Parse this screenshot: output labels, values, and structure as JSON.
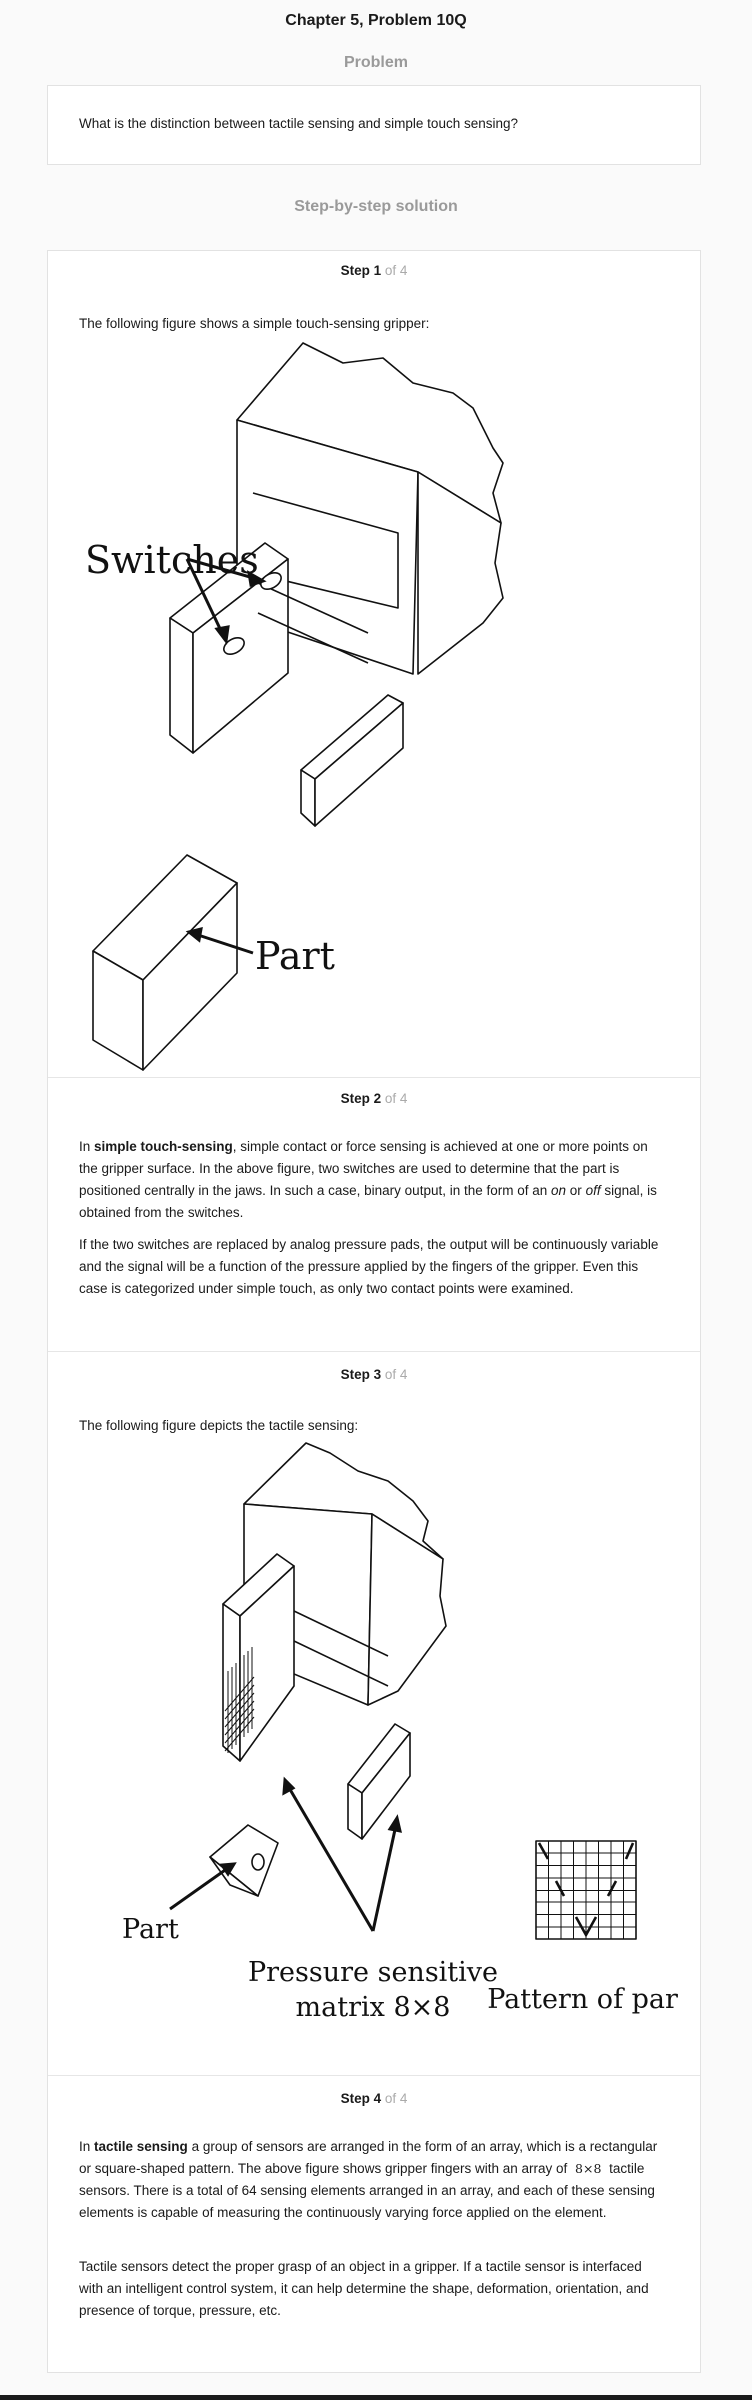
{
  "page": {
    "title": "Chapter 5, Problem 10Q",
    "problem_heading": "Problem",
    "solution_heading": "Step-by-step solution"
  },
  "problem": {
    "text": "What is the distinction between tactile sensing and simple touch sensing?"
  },
  "steps": [
    {
      "label": "Step 1",
      "of": "of 4",
      "intro": "The following figure shows a simple touch-sensing gripper:",
      "figure_labels": {
        "switches": "Switches",
        "part": "Part"
      }
    },
    {
      "label": "Step 2",
      "of": "of 4",
      "p1": {
        "a": "In ",
        "b": "simple touch-sensing",
        "c": ", simple contact or force sensing is achieved at one or more points on the gripper surface. In the above figure, two switches are used to determine that the part is positioned centrally in the jaws. In such a case, binary output, in the form of an ",
        "d": "on",
        "e": " or ",
        "f": "off",
        "g": " signal, is obtained from the switches."
      },
      "p2": "If the two switches are replaced by analog pressure pads, the output will be continuously variable and the signal will be a function of the pressure applied by the fingers of the gripper. Even this case is categorized under simple touch, as only two contact points were examined."
    },
    {
      "label": "Step 3",
      "of": "of 4",
      "intro": "The following figure depicts the tactile sensing:",
      "figure_labels": {
        "part": "Part",
        "matrix_line1": "Pressure sensitive",
        "matrix_line2": "matrix 8×8",
        "pattern": "Pattern of part"
      }
    },
    {
      "label": "Step 4",
      "of": "of 4",
      "p1": {
        "a": "In ",
        "b": "tactile sensing",
        "c": " a group of sensors are arranged in the form of an array, which is a rectangular or square-shaped pattern. The above figure shows gripper fingers with an array of ",
        "math": "8×8",
        "d": " tactile sensors. There is a total of 64 sensing elements arranged in an array, and each of these sensing elements is capable of measuring the continuously varying force applied on the element."
      },
      "p2": "Tactile sensors detect the proper grasp of an object in a gripper. If a tactile sensor is interfaced with an intelligent control system, it can help determine the shape, deformation, orientation, and presence of torque, pressure, etc."
    }
  ]
}
